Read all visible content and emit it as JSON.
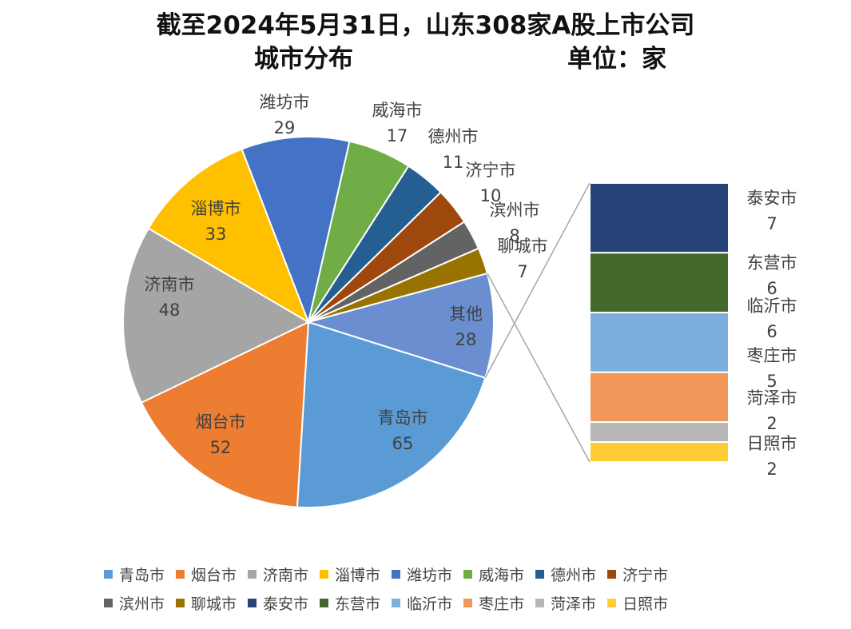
{
  "title": {
    "line1": "截至2024年5月31日，山东308家A股上市公司",
    "line2_left": "城市分布",
    "line2_right": "单位：家"
  },
  "chart_data": {
    "type": "pie",
    "subtype": "bar-of-pie",
    "pie": [
      {
        "name": "青岛市",
        "value": 65,
        "color": "#5B9BD5"
      },
      {
        "name": "烟台市",
        "value": 52,
        "color": "#ED7D31"
      },
      {
        "name": "济南市",
        "value": 48,
        "color": "#A5A5A5"
      },
      {
        "name": "淄博市",
        "value": 33,
        "color": "#FFC000"
      },
      {
        "name": "潍坊市",
        "value": 29,
        "color": "#4472C4"
      },
      {
        "name": "威海市",
        "value": 17,
        "color": "#70AD47"
      },
      {
        "name": "德州市",
        "value": 11,
        "color": "#255E91"
      },
      {
        "name": "济宁市",
        "value": 10,
        "color": "#9E480E"
      },
      {
        "name": "滨州市",
        "value": 8,
        "color": "#636363"
      },
      {
        "name": "聊城市",
        "value": 7,
        "color": "#997300"
      },
      {
        "name": "其他",
        "value": 28,
        "color": "#6A8ED0"
      }
    ],
    "bar": [
      {
        "name": "泰安市",
        "value": 7,
        "color": "#264478"
      },
      {
        "name": "东营市",
        "value": 6,
        "color": "#43682B"
      },
      {
        "name": "临沂市",
        "value": 6,
        "color": "#7CAFDD"
      },
      {
        "name": "枣庄市",
        "value": 5,
        "color": "#F1975A"
      },
      {
        "name": "菏泽市",
        "value": 2,
        "color": "#B7B7B7"
      },
      {
        "name": "日照市",
        "value": 2,
        "color": "#FFCD33"
      }
    ],
    "legend": [
      {
        "name": "青岛市",
        "color": "#5B9BD5"
      },
      {
        "name": "烟台市",
        "color": "#ED7D31"
      },
      {
        "name": "济南市",
        "color": "#A5A5A5"
      },
      {
        "name": "淄博市",
        "color": "#FFC000"
      },
      {
        "name": "潍坊市",
        "color": "#4472C4"
      },
      {
        "name": "威海市",
        "color": "#70AD47"
      },
      {
        "name": "德州市",
        "color": "#255E91"
      },
      {
        "name": "济宁市",
        "color": "#9E480E"
      },
      {
        "name": "滨州市",
        "color": "#636363"
      },
      {
        "name": "聊城市",
        "color": "#997300"
      },
      {
        "name": "泰安市",
        "color": "#264478"
      },
      {
        "name": "东营市",
        "color": "#43682B"
      },
      {
        "name": "临沂市",
        "color": "#7CAFDD"
      },
      {
        "name": "枣庄市",
        "color": "#F1975A"
      },
      {
        "name": "菏泽市",
        "color": "#B7B7B7"
      },
      {
        "name": "日照市",
        "color": "#FFCD33"
      }
    ],
    "legend_position": "bottom"
  }
}
